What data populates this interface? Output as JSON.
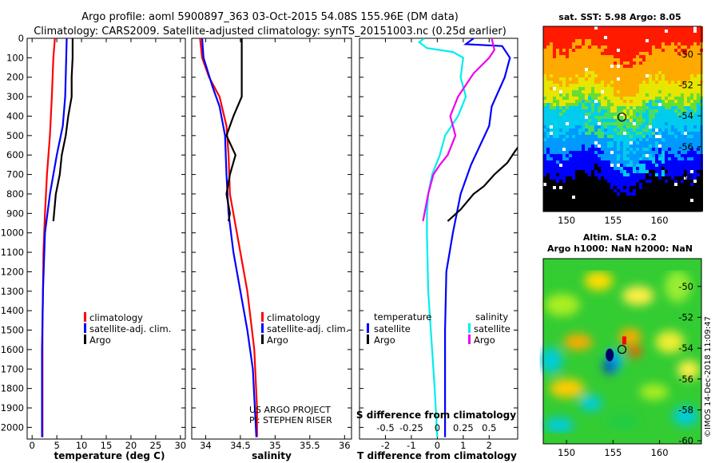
{
  "title_line1": "Argo profile: aoml 5900897_363 03-Oct-2015 54.08S 155.96E (DM data)",
  "title_line2": "Climatology: CARS2009. Satellite-adjusted climatology: synTS_20151003.nc (0.25d earlier)",
  "credit_rotated": "©IMOS 14-Dec-2018 11:09:47",
  "colors": {
    "climatology": "#ff0000",
    "satellite": "#0000ff",
    "argo": "#000000",
    "satellite_salinity": "#00eeee",
    "argo_salinity": "#ee00ee"
  },
  "chart_data": [
    {
      "type": "line",
      "name": "temperature-profile",
      "xlabel": "temperature (deg C)",
      "ylabel": "",
      "xlim": [
        -1,
        31
      ],
      "ylim": [
        2060,
        0
      ],
      "x_ticks": [
        0,
        5,
        10,
        15,
        20,
        25,
        30
      ],
      "y_ticks": [
        0,
        100,
        200,
        300,
        400,
        500,
        600,
        700,
        800,
        900,
        1000,
        1100,
        1200,
        1300,
        1400,
        1500,
        1600,
        1700,
        1800,
        1900,
        2000
      ],
      "legend": [
        "climatology",
        "satellite-adj. clim.",
        "Argo"
      ],
      "series": [
        {
          "name": "climatology",
          "color": "#ff0000",
          "points": [
            [
              4.6,
              0
            ],
            [
              4.3,
              100
            ],
            [
              4.0,
              300
            ],
            [
              3.6,
              500
            ],
            [
              3.0,
              700
            ],
            [
              2.6,
              900
            ],
            [
              2.3,
              1100
            ],
            [
              2.1,
              1500
            ],
            [
              2.1,
              2050
            ]
          ]
        },
        {
          "name": "satellite-adj. clim.",
          "color": "#0000ff",
          "points": [
            [
              7.0,
              0
            ],
            [
              6.9,
              100
            ],
            [
              6.7,
              300
            ],
            [
              6.2,
              450
            ],
            [
              5.0,
              600
            ],
            [
              3.6,
              800
            ],
            [
              2.6,
              1000
            ],
            [
              2.2,
              1300
            ],
            [
              2.0,
              1600
            ],
            [
              2.0,
              2050
            ]
          ]
        },
        {
          "name": "Argo",
          "color": "#000000",
          "points": [
            [
              8.2,
              0
            ],
            [
              8.2,
              100
            ],
            [
              8.0,
              200
            ],
            [
              8.0,
              300
            ],
            [
              7.3,
              400
            ],
            [
              6.8,
              500
            ],
            [
              6.0,
              600
            ],
            [
              5.6,
              700
            ],
            [
              4.8,
              800
            ],
            [
              4.3,
              940
            ]
          ]
        }
      ]
    },
    {
      "type": "line",
      "name": "salinity-profile",
      "xlabel": "salinity",
      "ylabel": "",
      "xlim": [
        33.8,
        36.1
      ],
      "ylim": [
        2060,
        0
      ],
      "x_ticks": [
        34,
        34.5,
        35,
        35.5,
        36
      ],
      "legend": [
        "climatology",
        "satellite-adj. clim.",
        "Argo"
      ],
      "annotations": [
        "US ARGO PROJECT",
        "PI: STEPHEN RISER"
      ],
      "series": [
        {
          "name": "climatology",
          "color": "#ff0000",
          "points": [
            [
              33.92,
              0
            ],
            [
              33.95,
              100
            ],
            [
              34.05,
              200
            ],
            [
              34.2,
              300
            ],
            [
              34.3,
              450
            ],
            [
              34.33,
              600
            ],
            [
              34.35,
              800
            ],
            [
              34.45,
              1000
            ],
            [
              34.6,
              1300
            ],
            [
              34.7,
              1600
            ],
            [
              34.74,
              1900
            ],
            [
              34.74,
              2050
            ]
          ]
        },
        {
          "name": "satellite-adj. clim.",
          "color": "#0000ff",
          "points": [
            [
              33.95,
              0
            ],
            [
              33.97,
              100
            ],
            [
              34.1,
              250
            ],
            [
              34.2,
              350
            ],
            [
              34.28,
              500
            ],
            [
              34.3,
              700
            ],
            [
              34.33,
              900
            ],
            [
              34.4,
              1100
            ],
            [
              34.5,
              1300
            ],
            [
              34.6,
              1500
            ],
            [
              34.68,
              1700
            ],
            [
              34.73,
              2050
            ]
          ]
        },
        {
          "name": "Argo",
          "color": "#000000",
          "points": [
            [
              34.52,
              0
            ],
            [
              34.52,
              100
            ],
            [
              34.52,
              200
            ],
            [
              34.52,
              300
            ],
            [
              34.4,
              400
            ],
            [
              34.3,
              500
            ],
            [
              34.43,
              600
            ],
            [
              34.35,
              700
            ],
            [
              34.3,
              800
            ],
            [
              34.35,
              900
            ],
            [
              34.33,
              940
            ]
          ]
        }
      ]
    },
    {
      "type": "line",
      "name": "difference-profile",
      "xlabel": "T difference from climatology",
      "ylabel": "",
      "xlim": [
        -3,
        3.1
      ],
      "ylim": [
        2060,
        0
      ],
      "x_ticks": [
        -2,
        -1,
        0,
        1,
        2
      ],
      "x_tick_labels": [
        "-2",
        "-1",
        "0",
        "1",
        "2"
      ],
      "secondary_xlabel": "S difference from climatology",
      "secondary_ticks": [
        -0.5,
        -0.25,
        0,
        0.25,
        0.5
      ],
      "secondary_tick_labels": [
        "-0.5",
        "-0.25",
        "0",
        "0.25",
        "0.5"
      ],
      "legend_left_title": "temperature",
      "legend_right_title": "salinity",
      "legend_left": [
        "satellite",
        "Argo"
      ],
      "legend_right": [
        "satellite",
        "Argo"
      ],
      "series": [
        {
          "name": "temperature satellite",
          "color": "#0000ff",
          "points": [
            [
              1.4,
              0
            ],
            [
              1.1,
              30
            ],
            [
              2.5,
              40
            ],
            [
              2.8,
              100
            ],
            [
              2.6,
              200
            ],
            [
              2.1,
              350
            ],
            [
              2.0,
              450
            ],
            [
              1.3,
              650
            ],
            [
              0.9,
              800
            ],
            [
              0.6,
              1000
            ],
            [
              0.35,
              1200
            ],
            [
              0.3,
              1500
            ],
            [
              0.3,
              2050
            ]
          ]
        },
        {
          "name": "temperature Argo",
          "color": "#000000",
          "points": [
            [
              3.3,
              -380
            ],
            [
              3.6,
              200
            ],
            [
              3.6,
              380
            ],
            [
              3.2,
              430
            ],
            [
              3.4,
              510
            ],
            [
              3.0,
              580
            ],
            [
              2.7,
              640
            ],
            [
              2.2,
              700
            ],
            [
              1.8,
              760
            ],
            [
              1.4,
              800
            ],
            [
              0.9,
              880
            ],
            [
              0.4,
              940
            ]
          ]
        },
        {
          "name": "salinity satellite",
          "color": "#00eeee",
          "points": [
            [
              -0.5,
              0
            ],
            [
              -0.7,
              20
            ],
            [
              -0.4,
              50
            ],
            [
              0.6,
              70
            ],
            [
              1.0,
              100
            ],
            [
              0.9,
              200
            ],
            [
              1.1,
              300
            ],
            [
              0.8,
              400
            ],
            [
              0.3,
              500
            ],
            [
              0.1,
              600
            ],
            [
              -0.2,
              700
            ],
            [
              -0.35,
              800
            ],
            [
              -0.4,
              900
            ],
            [
              -0.4,
              1000
            ],
            [
              -0.35,
              1300
            ],
            [
              -0.2,
              1600
            ],
            [
              -0.1,
              1800
            ],
            [
              0.0,
              2050
            ]
          ]
        },
        {
          "name": "salinity Argo",
          "color": "#ee00ee",
          "points": [
            [
              2.1,
              0
            ],
            [
              2.2,
              60
            ],
            [
              2.0,
              100
            ],
            [
              1.4,
              180
            ],
            [
              0.8,
              300
            ],
            [
              0.5,
              400
            ],
            [
              0.7,
              500
            ],
            [
              0.4,
              600
            ],
            [
              0.1,
              650
            ],
            [
              -0.15,
              700
            ],
            [
              -0.35,
              800
            ],
            [
              -0.55,
              940
            ]
          ]
        }
      ]
    },
    {
      "type": "heatmap",
      "name": "sst-map",
      "title": "sat. SST: 5.98 Argo: 8.05",
      "x_ticks": [
        150,
        155,
        160
      ],
      "y_ticks": [
        -50,
        -52,
        -54,
        -56,
        -58,
        -60
      ],
      "y_tick_labels": [
        "-50",
        "-52",
        "-54",
        "-56",
        "-58",
        "-60"
      ],
      "xlim": [
        147.5,
        164.5
      ],
      "ylim": [
        -60.2,
        -48.2
      ],
      "marker": [
        155.96,
        -54.08
      ]
    },
    {
      "type": "heatmap",
      "name": "sla-map",
      "title_line1": "Altim. SLA: 0.2",
      "title_line2": "Argo h1000: NaN h2000: NaN",
      "x_ticks": [
        150,
        155,
        160
      ],
      "y_ticks": [
        -50,
        -52,
        -54,
        -56,
        -58,
        -60
      ],
      "y_tick_labels": [
        "-50",
        "-52",
        "-54",
        "-56",
        "-58",
        "-60"
      ],
      "xlim": [
        147.5,
        164.5
      ],
      "ylim": [
        -60.2,
        -48.2
      ],
      "marker": [
        155.96,
        -54.08
      ]
    }
  ]
}
